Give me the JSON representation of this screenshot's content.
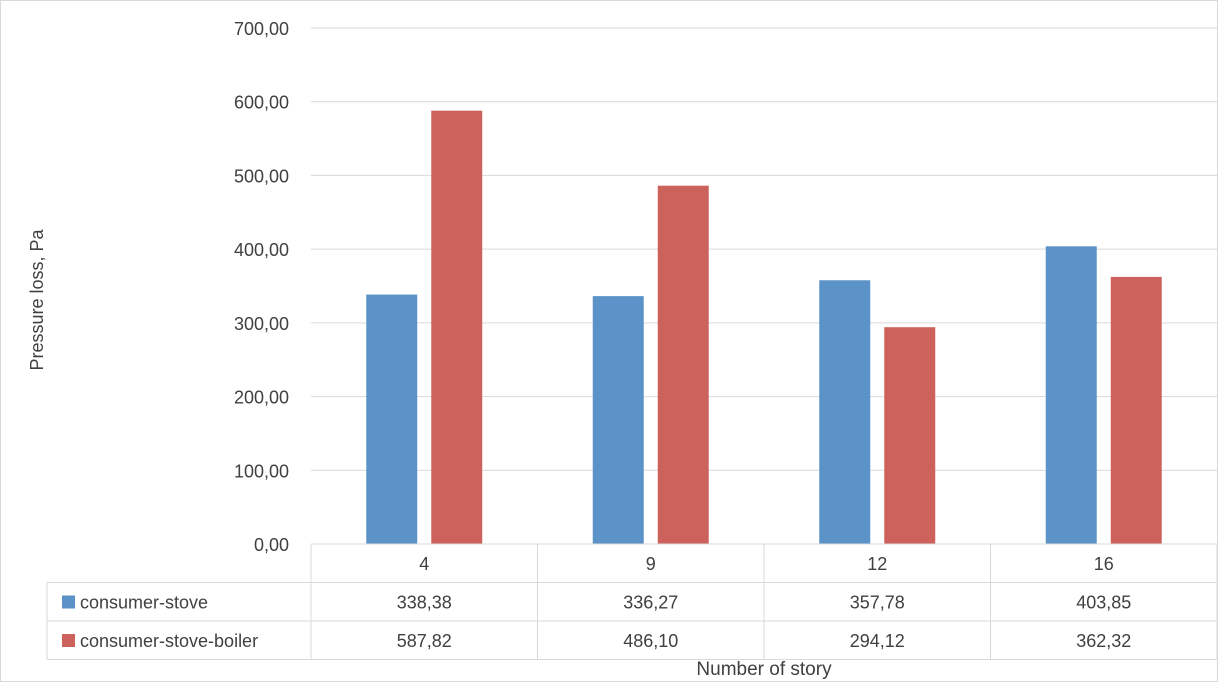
{
  "chart_data": {
    "type": "bar",
    "categories": [
      "4",
      "9",
      "12",
      "16"
    ],
    "series": [
      {
        "name": "consumer-stove",
        "values": [
          338.38,
          336.27,
          357.78,
          403.85
        ],
        "value_labels": [
          "338,38",
          "336,27",
          "357,78",
          "403,85"
        ],
        "color": "#5b93c8"
      },
      {
        "name": "consumer-stove-boiler",
        "values": [
          587.82,
          486.1,
          294.12,
          362.32
        ],
        "value_labels": [
          "587,82",
          "486,10",
          "294,12",
          "362,32"
        ],
        "color": "#cd625c"
      }
    ],
    "title": "",
    "xlabel": "Number of story",
    "ylabel": "Pressure loss, Pa",
    "ylim": [
      0,
      700
    ],
    "yticks": [
      0,
      100,
      200,
      300,
      400,
      500,
      600,
      700
    ],
    "ytick_labels": [
      "0,00",
      "100,00",
      "200,00",
      "300,00",
      "400,00",
      "500,00",
      "600,00",
      "700,00"
    ],
    "grid": true,
    "legend": "data-table"
  }
}
